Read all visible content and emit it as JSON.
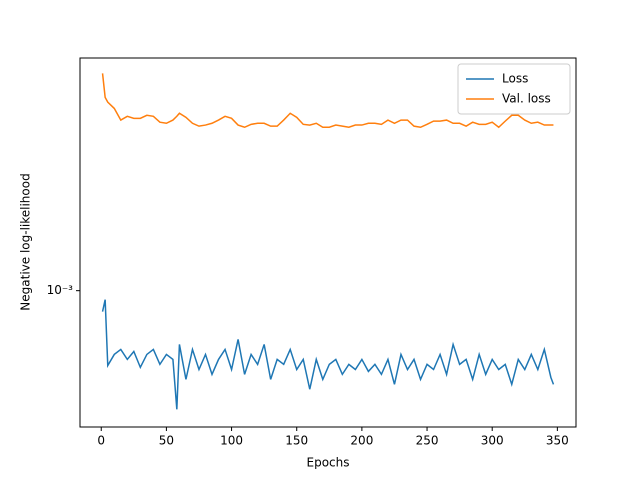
{
  "chart_data": {
    "type": "line",
    "x_label": "Epochs",
    "y_label": "Negative log-likelihood",
    "x": [
      1,
      3,
      5,
      10,
      15,
      20,
      25,
      30,
      35,
      40,
      45,
      50,
      55,
      58,
      60,
      65,
      70,
      75,
      80,
      85,
      90,
      95,
      100,
      105,
      110,
      115,
      120,
      125,
      130,
      135,
      140,
      145,
      150,
      155,
      160,
      165,
      170,
      175,
      180,
      185,
      190,
      195,
      200,
      205,
      210,
      215,
      220,
      225,
      230,
      235,
      240,
      245,
      250,
      255,
      260,
      265,
      270,
      275,
      280,
      285,
      290,
      295,
      300,
      305,
      310,
      315,
      320,
      325,
      330,
      335,
      340,
      345,
      347
    ],
    "series": [
      {
        "name": "Loss",
        "color": "#1f77b4",
        "values": [
          0.000851,
          0.000933,
          0.000562,
          0.000612,
          0.000636,
          0.000589,
          0.000626,
          0.000554,
          0.000612,
          0.000636,
          0.000567,
          0.000612,
          0.000589,
          0.000401,
          0.000661,
          0.000505,
          0.000636,
          0.000545,
          0.000612,
          0.000525,
          0.000589,
          0.000636,
          0.000545,
          0.000687,
          0.000525,
          0.000612,
          0.000567,
          0.000661,
          0.000505,
          0.000589,
          0.000567,
          0.000636,
          0.000545,
          0.000589,
          0.000468,
          0.000589,
          0.000505,
          0.000567,
          0.000589,
          0.000525,
          0.000567,
          0.000545,
          0.000589,
          0.000537,
          0.000567,
          0.000525,
          0.000589,
          0.000486,
          0.000612,
          0.000545,
          0.000589,
          0.000505,
          0.000567,
          0.000545,
          0.000612,
          0.000525,
          0.000661,
          0.000567,
          0.000589,
          0.000505,
          0.000612,
          0.000525,
          0.000589,
          0.000545,
          0.000567,
          0.000486,
          0.000589,
          0.000545,
          0.000612,
          0.000545,
          0.000636,
          0.000513,
          0.000486
        ]
      },
      {
        "name": "Val. loss",
        "color": "#ff7f0e",
        "values": [
          0.00533,
          0.00443,
          0.00427,
          0.00407,
          0.00372,
          0.00383,
          0.00377,
          0.00377,
          0.00386,
          0.00383,
          0.00366,
          0.00363,
          0.00372,
          0.00383,
          0.00392,
          0.0038,
          0.00363,
          0.00355,
          0.00358,
          0.00363,
          0.00372,
          0.00383,
          0.00377,
          0.00358,
          0.00352,
          0.0036,
          0.00363,
          0.00363,
          0.00355,
          0.00355,
          0.00372,
          0.00392,
          0.0038,
          0.0036,
          0.00358,
          0.00363,
          0.00352,
          0.00352,
          0.00358,
          0.00355,
          0.00352,
          0.00358,
          0.00358,
          0.00363,
          0.00363,
          0.0036,
          0.00372,
          0.00363,
          0.00372,
          0.00372,
          0.00355,
          0.00352,
          0.0036,
          0.00369,
          0.00369,
          0.00372,
          0.00363,
          0.00363,
          0.00355,
          0.00366,
          0.0036,
          0.0036,
          0.00366,
          0.00352,
          0.00369,
          0.00386,
          0.00386,
          0.00372,
          0.00363,
          0.00366,
          0.00358,
          0.00358,
          0.00358
        ]
      }
    ],
    "xlim": [
      -16.3,
      364.3
    ],
    "xticks": [
      0,
      50,
      100,
      150,
      200,
      250,
      300,
      350
    ],
    "ylim": [
      0.00035,
      0.006
    ],
    "yticks": [
      {
        "value": 0.001,
        "label": "10⁻³"
      }
    ],
    "yscale": "log",
    "grid": false,
    "legend": "upper right"
  }
}
